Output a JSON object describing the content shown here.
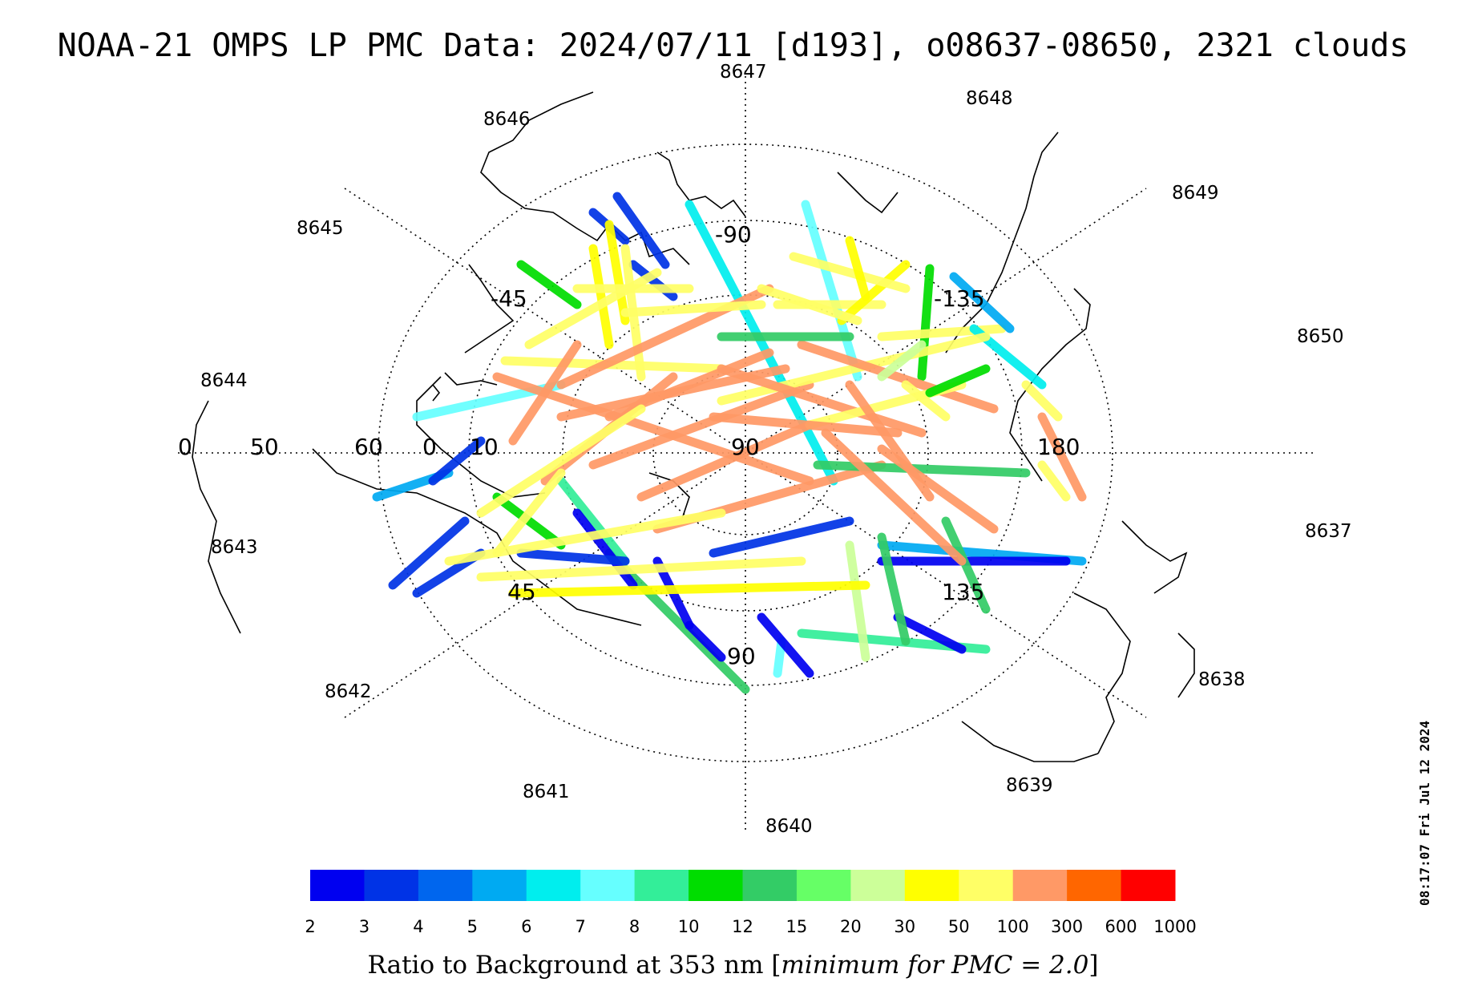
{
  "title": "NOAA-21 OMPS LP PMC Data: 2024/07/11 [d193], o08637-08650, 2321 clouds",
  "timestamp": "08:17:07 Fri Jul 12 2024",
  "orbit_labels": [
    "8637",
    "8638",
    "8639",
    "8640",
    "8641",
    "8642",
    "8643",
    "8644",
    "8645",
    "8646",
    "8647",
    "8648",
    "8649",
    "8650"
  ],
  "grid_labels": {
    "center": "90",
    "top": "-90",
    "right_top": "-135",
    "left_top": "-45",
    "bottom_left": "45",
    "bottom_right": "135",
    "bottom": "90",
    "right": "180",
    "left": [
      "0",
      "50",
      "60",
      "0",
      "10"
    ]
  },
  "colorbar": {
    "ticks": [
      "2",
      "3",
      "4",
      "5",
      "6",
      "7",
      "8",
      "10",
      "12",
      "15",
      "20",
      "30",
      "50",
      "100",
      "300",
      "600",
      "1000"
    ],
    "colors": [
      "#0000f0",
      "#0033e6",
      "#0066ee",
      "#00aaf2",
      "#00eeee",
      "#66ffff",
      "#33ee99",
      "#00dd00",
      "#33cc66",
      "#66ff66",
      "#ccff99",
      "#ffff00",
      "#ffff66",
      "#ff9966",
      "#ff6600",
      "#ff0000"
    ],
    "caption_prefix": "Ratio to Background at 353 nm [",
    "caption_italic": "minimum for PMC = 2.0",
    "caption_suffix": "]"
  }
}
